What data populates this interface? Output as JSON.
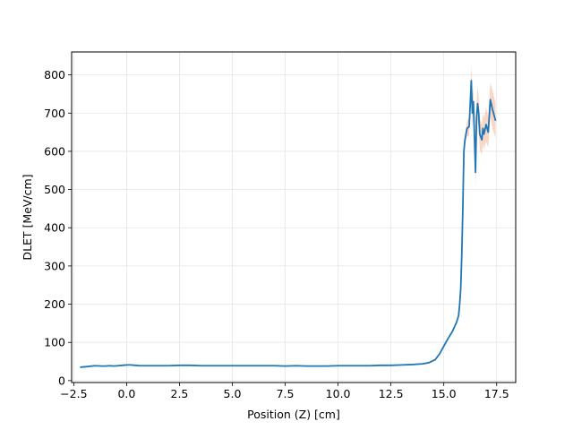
{
  "chart_data": {
    "type": "line",
    "title": "",
    "xlabel": "Position (Z) [cm]",
    "ylabel": "DLET [MeV/cm]",
    "xlim": [
      -2.6,
      18.4
    ],
    "ylim": [
      -5,
      860
    ],
    "xticks": [
      -2.5,
      0.0,
      2.5,
      5.0,
      7.5,
      10.0,
      12.5,
      15.0,
      17.5
    ],
    "xtick_labels": [
      "−2.5",
      "0.0",
      "2.5",
      "5.0",
      "7.5",
      "10.0",
      "12.5",
      "15.0",
      "17.5"
    ],
    "yticks": [
      0,
      100,
      200,
      300,
      400,
      500,
      600,
      700,
      800
    ],
    "ytick_labels": [
      "0",
      "100",
      "200",
      "300",
      "400",
      "500",
      "600",
      "700",
      "800"
    ],
    "grid": true,
    "colors": {
      "line": "#1f77b4",
      "band": "#f4a582"
    },
    "series": [
      {
        "x": [
          -2.2,
          -1.8,
          -1.5,
          -1.2,
          -1.0,
          -0.8,
          -0.6,
          -0.4,
          -0.2,
          0.0,
          0.2,
          0.4,
          0.6,
          0.8,
          1.0,
          1.5,
          2.0,
          2.5,
          3.0,
          3.5,
          4.0,
          4.5,
          5.0,
          5.5,
          6.0,
          6.5,
          7.0,
          7.5,
          8.0,
          8.5,
          9.0,
          9.5,
          10.0,
          10.5,
          11.0,
          11.5,
          12.0,
          12.5,
          13.0,
          13.5,
          14.0,
          14.3,
          14.6,
          14.8,
          15.0,
          15.2,
          15.4,
          15.5,
          15.6,
          15.7,
          15.75,
          15.8,
          15.85,
          15.9,
          15.95,
          16.0,
          16.1,
          16.2,
          16.3,
          16.35,
          16.4,
          16.45,
          16.5,
          16.55,
          16.6,
          16.65,
          16.7,
          16.8,
          16.85,
          16.9,
          17.0,
          17.1,
          17.2,
          17.3,
          17.45
        ],
        "y": [
          35,
          37,
          39,
          38,
          38,
          39,
          38,
          39,
          40,
          41,
          41,
          40,
          39,
          39,
          39,
          39,
          39,
          40,
          40,
          39,
          39,
          39,
          39,
          39,
          39,
          39,
          39,
          38,
          39,
          38,
          38,
          38,
          39,
          39,
          39,
          39,
          40,
          40,
          41,
          42,
          44,
          47,
          55,
          70,
          90,
          110,
          128,
          140,
          152,
          170,
          200,
          240,
          330,
          450,
          600,
          630,
          660,
          665,
          785,
          700,
          730,
          640,
          545,
          690,
          725,
          700,
          645,
          630,
          660,
          645,
          670,
          650,
          735,
          710,
          680
        ],
        "lower": [
          35,
          37,
          39,
          38,
          38,
          39,
          38,
          39,
          40,
          41,
          41,
          40,
          39,
          39,
          39,
          39,
          39,
          40,
          40,
          39,
          39,
          39,
          39,
          39,
          39,
          39,
          39,
          38,
          39,
          38,
          38,
          38,
          39,
          39,
          39,
          39,
          40,
          40,
          41,
          42,
          44,
          47,
          55,
          70,
          90,
          110,
          128,
          140,
          152,
          170,
          200,
          240,
          330,
          450,
          590,
          615,
          640,
          640,
          745,
          660,
          690,
          600,
          505,
          650,
          680,
          655,
          605,
          590,
          620,
          605,
          625,
          610,
          690,
          660,
          635
        ],
        "upper": [
          35,
          37,
          39,
          38,
          38,
          39,
          38,
          39,
          40,
          41,
          41,
          40,
          39,
          39,
          39,
          39,
          39,
          40,
          40,
          39,
          39,
          39,
          39,
          39,
          39,
          39,
          39,
          38,
          39,
          38,
          38,
          38,
          39,
          39,
          39,
          39,
          40,
          40,
          41,
          42,
          44,
          47,
          55,
          70,
          90,
          110,
          128,
          140,
          152,
          170,
          200,
          240,
          330,
          450,
          610,
          645,
          680,
          690,
          825,
          740,
          770,
          680,
          585,
          730,
          770,
          745,
          685,
          670,
          700,
          685,
          715,
          690,
          780,
          760,
          725
        ]
      }
    ]
  }
}
